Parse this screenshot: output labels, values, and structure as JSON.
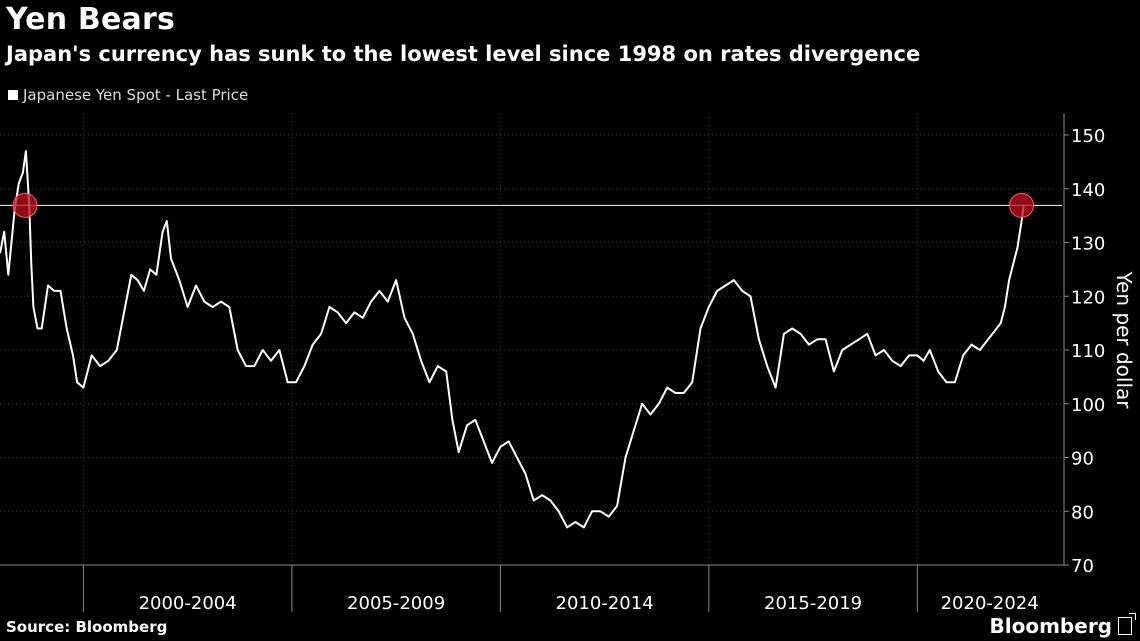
{
  "title": "Yen Bears",
  "subtitle": "Japan's currency has sunk to the lowest level since 1998 on rates divergence",
  "source": "Source: Bloomberg",
  "brand": "Bloomberg",
  "colors": {
    "background": "#000000",
    "line": "#ffffff",
    "highlight": "#c0101e",
    "grid": "#3a3a3a"
  },
  "chart_data": {
    "type": "line",
    "legend": "Japanese Yen Spot - Last Price",
    "ylabel": "Yen per dollar",
    "ylim": [
      70,
      150
    ],
    "yticks": [
      70,
      80,
      90,
      100,
      110,
      120,
      130,
      140,
      150
    ],
    "xlim": [
      1998.0,
      2022.75
    ],
    "x_category_labels": [
      "2000-2004",
      "2005-2009",
      "2010-2014",
      "2015-2019",
      "2020-2024"
    ],
    "reference_line": 136.9,
    "highlights": [
      {
        "x": 1998.6,
        "y": 136.9
      },
      {
        "x": 2022.5,
        "y": 136.9
      }
    ],
    "series": [
      {
        "name": "Japanese Yen Spot - Last Price",
        "x": [
          1998.0,
          1998.1,
          1998.2,
          1998.35,
          1998.45,
          1998.55,
          1998.62,
          1998.7,
          1998.75,
          1998.8,
          1998.9,
          1999.0,
          1999.15,
          1999.3,
          1999.45,
          1999.6,
          1999.75,
          1999.85,
          2000.0,
          2000.2,
          2000.4,
          2000.6,
          2000.8,
          2001.0,
          2001.15,
          2001.3,
          2001.45,
          2001.6,
          2001.75,
          2001.9,
          2002.0,
          2002.1,
          2002.3,
          2002.5,
          2002.7,
          2002.9,
          2003.1,
          2003.3,
          2003.5,
          2003.7,
          2003.9,
          2004.1,
          2004.3,
          2004.5,
          2004.7,
          2004.9,
          2005.1,
          2005.3,
          2005.5,
          2005.7,
          2005.9,
          2006.1,
          2006.3,
          2006.5,
          2006.7,
          2006.9,
          2007.1,
          2007.3,
          2007.5,
          2007.7,
          2007.9,
          2008.1,
          2008.3,
          2008.5,
          2008.7,
          2008.85,
          2009.0,
          2009.2,
          2009.4,
          2009.6,
          2009.8,
          2010.0,
          2010.2,
          2010.4,
          2010.6,
          2010.8,
          2011.0,
          2011.2,
          2011.4,
          2011.6,
          2011.8,
          2012.0,
          2012.2,
          2012.4,
          2012.6,
          2012.8,
          2013.0,
          2013.2,
          2013.4,
          2013.6,
          2013.8,
          2014.0,
          2014.2,
          2014.4,
          2014.6,
          2014.8,
          2015.0,
          2015.2,
          2015.4,
          2015.6,
          2015.8,
          2016.0,
          2016.2,
          2016.4,
          2016.6,
          2016.8,
          2017.0,
          2017.2,
          2017.4,
          2017.6,
          2017.8,
          2018.0,
          2018.2,
          2018.4,
          2018.6,
          2018.8,
          2019.0,
          2019.2,
          2019.4,
          2019.6,
          2019.8,
          2020.0,
          2020.15,
          2020.3,
          2020.5,
          2020.7,
          2020.9,
          2021.1,
          2021.3,
          2021.5,
          2021.7,
          2021.9,
          2022.0,
          2022.1,
          2022.2,
          2022.3,
          2022.4,
          2022.5,
          2022.55
        ],
        "values": [
          128,
          132,
          124,
          136,
          141,
          143,
          147,
          137,
          126,
          118,
          114,
          114,
          122,
          121,
          121,
          114,
          109,
          104,
          103,
          109,
          107,
          108,
          110,
          118,
          124,
          123,
          121,
          125,
          124,
          132,
          134,
          127,
          123,
          118,
          122,
          119,
          118,
          119,
          118,
          110,
          107,
          107,
          110,
          108,
          110,
          104,
          104,
          107,
          111,
          113,
          118,
          117,
          115,
          117,
          116,
          119,
          121,
          119,
          123,
          116,
          113,
          108,
          104,
          107,
          106,
          97,
          91,
          96,
          97,
          93,
          89,
          92,
          93,
          90,
          87,
          82,
          83,
          82,
          80,
          77,
          78,
          77,
          80,
          80,
          79,
          81,
          90,
          95,
          100,
          98,
          100,
          103,
          102,
          102,
          104,
          114,
          118,
          121,
          122,
          123,
          121,
          120,
          112,
          107,
          103,
          113,
          114,
          113,
          111,
          112,
          112,
          106,
          110,
          111,
          112,
          113,
          109,
          110,
          108,
          107,
          109,
          109,
          108,
          110,
          106,
          104,
          104,
          109,
          111,
          110,
          112,
          114,
          115,
          118,
          123,
          126,
          129,
          134,
          136.9
        ]
      }
    ]
  }
}
